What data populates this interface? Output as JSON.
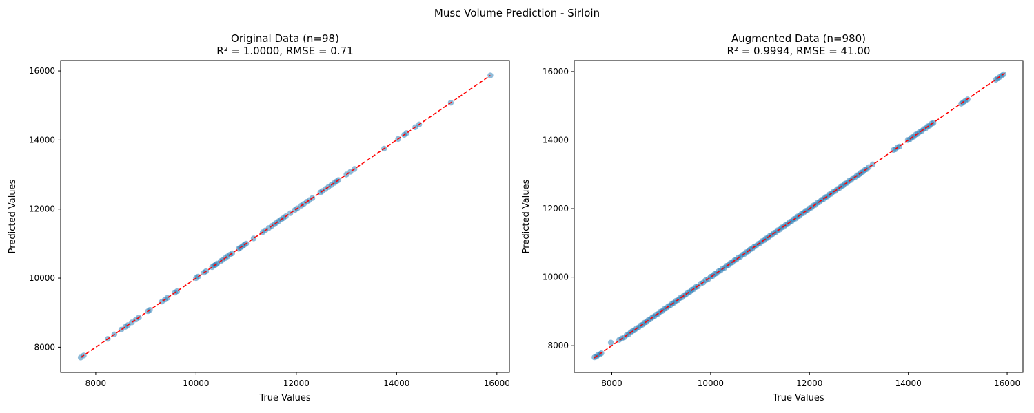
{
  "figure": {
    "suptitle": "Musc Volume Prediction - Sirloin"
  },
  "colors": {
    "points": "#1f77b4",
    "fit_line": "#ff0000",
    "axes": "#000000"
  },
  "chart_data": [
    {
      "type": "scatter",
      "title_line1": "Original Data (n=98)",
      "title_line2": "R² = 1.0000, RMSE = 0.71",
      "xlabel": "True Values",
      "ylabel": "Predicted Values",
      "xlim": [
        7300,
        16250
      ],
      "ylim": [
        7270,
        16300
      ],
      "xticks": [
        8000,
        10000,
        12000,
        14000,
        16000
      ],
      "yticks": [
        8000,
        10000,
        12000,
        14000,
        16000
      ],
      "reference_line": {
        "style": "dashed",
        "from": 7700,
        "to": 15870
      },
      "x": [
        7700,
        7760,
        8240,
        8370,
        8510,
        8590,
        8640,
        8720,
        8800,
        8860,
        9040,
        9080,
        9320,
        9380,
        9430,
        9580,
        9620,
        10000,
        10040,
        10160,
        10200,
        10320,
        10360,
        10390,
        10420,
        10490,
        10530,
        10580,
        10630,
        10680,
        10720,
        10850,
        10880,
        10920,
        10960,
        11000,
        11150,
        11330,
        11380,
        11450,
        11510,
        11560,
        11600,
        11650,
        11700,
        11740,
        11790,
        11880,
        11970,
        12020,
        12100,
        12150,
        12210,
        12260,
        12320,
        12480,
        12520,
        12580,
        12640,
        12700,
        12760,
        12800,
        12840,
        13000,
        13080,
        13160,
        13750,
        14030,
        14150,
        14200,
        14370,
        14450,
        15080,
        15870
      ],
      "y": [
        7700,
        7760,
        8240,
        8370,
        8510,
        8590,
        8640,
        8720,
        8800,
        8860,
        9040,
        9080,
        9320,
        9380,
        9430,
        9580,
        9620,
        10000,
        10040,
        10160,
        10200,
        10320,
        10360,
        10390,
        10420,
        10490,
        10530,
        10580,
        10630,
        10680,
        10720,
        10850,
        10880,
        10920,
        10960,
        11000,
        11150,
        11330,
        11380,
        11450,
        11510,
        11560,
        11600,
        11650,
        11700,
        11740,
        11790,
        11880,
        11970,
        12020,
        12100,
        12150,
        12210,
        12260,
        12320,
        12480,
        12520,
        12580,
        12640,
        12700,
        12760,
        12800,
        12840,
        13000,
        13080,
        13160,
        13750,
        14030,
        14150,
        14200,
        14370,
        14450,
        15080,
        15870
      ]
    },
    {
      "type": "scatter",
      "title_line1": "Augmented Data (n=980)",
      "title_line2": "R² = 0.9994, RMSE = 41.00",
      "xlabel": "True Values",
      "ylabel": "Predicted Values",
      "xlim": [
        7240,
        16320
      ],
      "ylim": [
        7220,
        16320
      ],
      "xticks": [
        8000,
        10000,
        12000,
        14000,
        16000
      ],
      "yticks": [
        8000,
        10000,
        12000,
        14000,
        16000
      ],
      "reference_line": {
        "style": "dashed",
        "from": 7640,
        "to": 15950
      },
      "x": [
        7650,
        7690,
        7720,
        7760,
        7790,
        7980,
        8150,
        8200,
        8250,
        8300,
        8340,
        8380,
        8420,
        8460,
        8500,
        8540,
        8580,
        8620,
        8660,
        8700,
        8740,
        8780,
        8820,
        8860,
        8900,
        8940,
        8980,
        9020,
        9060,
        9100,
        9140,
        9180,
        9220,
        9260,
        9300,
        9340,
        9380,
        9420,
        9460,
        9500,
        9540,
        9580,
        9620,
        9660,
        9700,
        9740,
        9800,
        9850,
        9900,
        9950,
        10000,
        10040,
        10080,
        10120,
        10160,
        10200,
        10240,
        10280,
        10320,
        10360,
        10400,
        10440,
        10480,
        10520,
        10560,
        10600,
        10640,
        10680,
        10720,
        10760,
        10800,
        10840,
        10880,
        10920,
        10960,
        11000,
        11040,
        11080,
        11120,
        11160,
        11200,
        11240,
        11280,
        11320,
        11360,
        11400,
        11440,
        11480,
        11520,
        11560,
        11600,
        11640,
        11680,
        11720,
        11760,
        11800,
        11840,
        11880,
        11920,
        11960,
        12000,
        12040,
        12080,
        12120,
        12160,
        12200,
        12240,
        12280,
        12320,
        12360,
        12400,
        12440,
        12480,
        12520,
        12560,
        12600,
        12640,
        12680,
        12720,
        12760,
        12800,
        12840,
        12880,
        12920,
        12960,
        13000,
        13040,
        13080,
        13120,
        13160,
        13200,
        13280,
        13700,
        13740,
        13780,
        13820,
        13990,
        14030,
        14070,
        14110,
        14150,
        14190,
        14230,
        14270,
        14310,
        14350,
        14390,
        14430,
        14470,
        14510,
        15070,
        15110,
        15150,
        15200,
        15770,
        15810,
        15850,
        15890,
        15930
      ],
      "y": [
        7660,
        7680,
        7730,
        7750,
        7780,
        8090,
        8170,
        8210,
        8240,
        8310,
        8330,
        8390,
        8430,
        8450,
        8510,
        8530,
        8590,
        8610,
        8670,
        8690,
        8750,
        8770,
        8830,
        8850,
        8910,
        8930,
        8990,
        9010,
        9070,
        9090,
        9150,
        9170,
        9230,
        9250,
        9310,
        9330,
        9390,
        9410,
        9470,
        9490,
        9550,
        9570,
        9630,
        9650,
        9710,
        9730,
        9810,
        9840,
        9910,
        9940,
        10010,
        10030,
        10090,
        10110,
        10170,
        10190,
        10250,
        10270,
        10330,
        10350,
        10410,
        10430,
        10490,
        10510,
        10570,
        10590,
        10650,
        10670,
        10730,
        10750,
        10810,
        10830,
        10890,
        10910,
        10970,
        10990,
        11050,
        11070,
        11130,
        11150,
        11210,
        11230,
        11290,
        11310,
        11370,
        11390,
        11450,
        11470,
        11530,
        11550,
        11610,
        11630,
        11690,
        11710,
        11770,
        11790,
        11850,
        11870,
        11930,
        11950,
        12010,
        12030,
        12090,
        12110,
        12170,
        12190,
        12250,
        12270,
        12330,
        12350,
        12410,
        12430,
        12490,
        12510,
        12570,
        12590,
        12650,
        12670,
        12730,
        12750,
        12810,
        12830,
        12890,
        12910,
        12970,
        12990,
        13050,
        13070,
        13130,
        13150,
        13210,
        13290,
        13710,
        13730,
        13790,
        13810,
        14000,
        14020,
        14080,
        14100,
        14160,
        14180,
        14240,
        14260,
        14320,
        14340,
        14400,
        14420,
        14480,
        14500,
        15060,
        15100,
        15140,
        15190,
        15760,
        15800,
        15840,
        15880,
        15920
      ]
    }
  ]
}
